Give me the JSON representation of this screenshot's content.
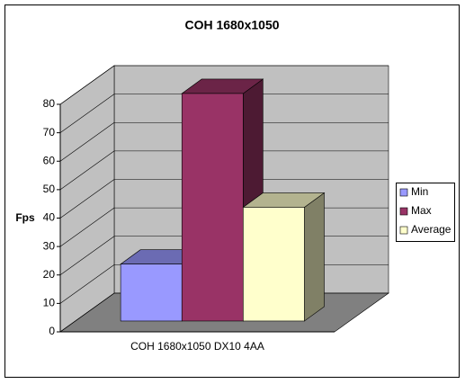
{
  "chart_data": {
    "type": "bar3d",
    "title": "COH 1680x1050",
    "y_label": "Fps",
    "categories": [
      "COH 1680x1050 DX10 4AA"
    ],
    "series": [
      {
        "name": "Min",
        "color": "#9999ff",
        "values": [
          20
        ]
      },
      {
        "name": "Max",
        "color": "#993366",
        "values": [
          80
        ]
      },
      {
        "name": "Average",
        "color": "#ffffcc",
        "values": [
          40
        ]
      }
    ],
    "ylim": [
      0,
      80
    ],
    "yticks": [
      0,
      10,
      20,
      30,
      40,
      50,
      60,
      70,
      80
    ],
    "grid": true,
    "legend": "right"
  }
}
